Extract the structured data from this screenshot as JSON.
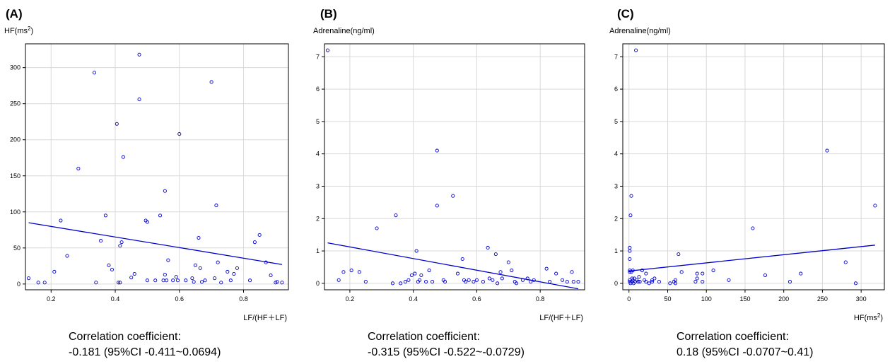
{
  "chart_data": [
    {
      "type": "scatter",
      "panel_label": "(A)",
      "ylabel": "HF(ms",
      "ylabel_sup": "2",
      "ylabel_end": ")",
      "xlabel": "LF/(HF＋LF)",
      "xlabel_sup": "",
      "xlabel_end": "",
      "xlim": [
        0.12,
        0.94
      ],
      "ylim": [
        -8,
        333
      ],
      "xticks": [
        0.2,
        0.4,
        0.6,
        0.8
      ],
      "xtick_labels": [
        "0.2",
        "0.4",
        "0.6",
        "0.8"
      ],
      "yticks": [
        0,
        50,
        100,
        150,
        200,
        250,
        300
      ],
      "ytick_labels": [
        "0",
        "50",
        "100",
        "150",
        "200",
        "250",
        "300"
      ],
      "grid": true,
      "point_color": "#0000cc",
      "line_color": "#0000cc",
      "fit_line": {
        "x": [
          0.13,
          0.92
        ],
        "y": [
          85,
          27
        ]
      },
      "caption_title": "Correlation coefficient:",
      "caption_value": "-0.181 (95%CI -0.411~0.0694)",
      "points": [
        {
          "x": 0.13,
          "y": 8
        },
        {
          "x": 0.16,
          "y": 2
        },
        {
          "x": 0.18,
          "y": 2
        },
        {
          "x": 0.21,
          "y": 17
        },
        {
          "x": 0.23,
          "y": 88
        },
        {
          "x": 0.25,
          "y": 39
        },
        {
          "x": 0.285,
          "y": 160
        },
        {
          "x": 0.335,
          "y": 293
        },
        {
          "x": 0.34,
          "y": 2
        },
        {
          "x": 0.355,
          "y": 60
        },
        {
          "x": 0.37,
          "y": 95
        },
        {
          "x": 0.38,
          "y": 26
        },
        {
          "x": 0.39,
          "y": 20
        },
        {
          "x": 0.405,
          "y": 222
        },
        {
          "x": 0.41,
          "y": 2
        },
        {
          "x": 0.415,
          "y": 2
        },
        {
          "x": 0.415,
          "y": 53
        },
        {
          "x": 0.42,
          "y": 58
        },
        {
          "x": 0.425,
          "y": 176
        },
        {
          "x": 0.45,
          "y": 9
        },
        {
          "x": 0.46,
          "y": 14
        },
        {
          "x": 0.475,
          "y": 256
        },
        {
          "x": 0.475,
          "y": 318
        },
        {
          "x": 0.495,
          "y": 88
        },
        {
          "x": 0.5,
          "y": 86
        },
        {
          "x": 0.5,
          "y": 5
        },
        {
          "x": 0.525,
          "y": 5
        },
        {
          "x": 0.54,
          "y": 95
        },
        {
          "x": 0.55,
          "y": 5
        },
        {
          "x": 0.555,
          "y": 13
        },
        {
          "x": 0.555,
          "y": 129
        },
        {
          "x": 0.56,
          "y": 5
        },
        {
          "x": 0.565,
          "y": 33
        },
        {
          "x": 0.58,
          "y": 5
        },
        {
          "x": 0.59,
          "y": 10
        },
        {
          "x": 0.595,
          "y": 5
        },
        {
          "x": 0.6,
          "y": 208
        },
        {
          "x": 0.62,
          "y": 5
        },
        {
          "x": 0.64,
          "y": 8
        },
        {
          "x": 0.645,
          "y": 3
        },
        {
          "x": 0.65,
          "y": 26
        },
        {
          "x": 0.66,
          "y": 64
        },
        {
          "x": 0.665,
          "y": 22
        },
        {
          "x": 0.67,
          "y": 3
        },
        {
          "x": 0.68,
          "y": 5
        },
        {
          "x": 0.7,
          "y": 280
        },
        {
          "x": 0.71,
          "y": 8
        },
        {
          "x": 0.715,
          "y": 109
        },
        {
          "x": 0.72,
          "y": 30
        },
        {
          "x": 0.73,
          "y": 2
        },
        {
          "x": 0.75,
          "y": 17
        },
        {
          "x": 0.76,
          "y": 5
        },
        {
          "x": 0.77,
          "y": 14
        },
        {
          "x": 0.78,
          "y": 22
        },
        {
          "x": 0.82,
          "y": 5
        },
        {
          "x": 0.835,
          "y": 58
        },
        {
          "x": 0.85,
          "y": 68
        },
        {
          "x": 0.87,
          "y": 30
        },
        {
          "x": 0.885,
          "y": 12
        },
        {
          "x": 0.9,
          "y": 2
        },
        {
          "x": 0.905,
          "y": 3
        },
        {
          "x": 0.92,
          "y": 2
        }
      ]
    },
    {
      "type": "scatter",
      "panel_label": "(B)",
      "ylabel": "Adrenaline(ng/ml)",
      "ylabel_sup": "",
      "ylabel_end": "",
      "xlabel": "LF/(HF＋LF)",
      "xlabel_sup": "",
      "xlabel_end": "",
      "xlim": [
        0.12,
        0.94
      ],
      "ylim": [
        -0.2,
        7.4
      ],
      "xticks": [
        0.2,
        0.4,
        0.6,
        0.8
      ],
      "xtick_labels": [
        "0.2",
        "0.4",
        "0.6",
        "0.8"
      ],
      "yticks": [
        0,
        1,
        2,
        3,
        4,
        5,
        6,
        7
      ],
      "ytick_labels": [
        "0",
        "1",
        "2",
        "3",
        "4",
        "5",
        "6",
        "7"
      ],
      "grid": true,
      "point_color": "#0000cc",
      "line_color": "#0000cc",
      "fit_line": {
        "x": [
          0.13,
          0.92
        ],
        "y": [
          1.25,
          -0.17
        ]
      },
      "caption_title": "Correlation coefficient:",
      "caption_value": "-0.315 (95%CI -0.522~-0.0729)",
      "points": [
        {
          "x": 0.13,
          "y": 7.2
        },
        {
          "x": 0.165,
          "y": 0.1
        },
        {
          "x": 0.18,
          "y": 0.35
        },
        {
          "x": 0.205,
          "y": 0.4
        },
        {
          "x": 0.23,
          "y": 0.35
        },
        {
          "x": 0.25,
          "y": 0.05
        },
        {
          "x": 0.285,
          "y": 1.7
        },
        {
          "x": 0.335,
          "y": 0.0
        },
        {
          "x": 0.345,
          "y": 2.1
        },
        {
          "x": 0.36,
          "y": 0.0
        },
        {
          "x": 0.375,
          "y": 0.05
        },
        {
          "x": 0.385,
          "y": 0.1
        },
        {
          "x": 0.395,
          "y": 0.25
        },
        {
          "x": 0.405,
          "y": 0.3
        },
        {
          "x": 0.41,
          "y": 1.0
        },
        {
          "x": 0.415,
          "y": 0.05
        },
        {
          "x": 0.42,
          "y": 0.1
        },
        {
          "x": 0.425,
          "y": 0.25
        },
        {
          "x": 0.44,
          "y": 0.05
        },
        {
          "x": 0.45,
          "y": 0.4
        },
        {
          "x": 0.46,
          "y": 0.05
        },
        {
          "x": 0.475,
          "y": 2.4
        },
        {
          "x": 0.475,
          "y": 4.1
        },
        {
          "x": 0.495,
          "y": 0.1
        },
        {
          "x": 0.5,
          "y": 0.05
        },
        {
          "x": 0.525,
          "y": 2.7
        },
        {
          "x": 0.54,
          "y": 0.3
        },
        {
          "x": 0.555,
          "y": 0.75
        },
        {
          "x": 0.56,
          "y": 0.1
        },
        {
          "x": 0.565,
          "y": 0.05
        },
        {
          "x": 0.575,
          "y": 0.1
        },
        {
          "x": 0.59,
          "y": 0.05
        },
        {
          "x": 0.6,
          "y": 0.1
        },
        {
          "x": 0.62,
          "y": 0.05
        },
        {
          "x": 0.635,
          "y": 1.1
        },
        {
          "x": 0.64,
          "y": 0.15
        },
        {
          "x": 0.65,
          "y": 0.1
        },
        {
          "x": 0.66,
          "y": 0.9
        },
        {
          "x": 0.665,
          "y": 0.0
        },
        {
          "x": 0.675,
          "y": 0.35
        },
        {
          "x": 0.68,
          "y": 0.15
        },
        {
          "x": 0.7,
          "y": 0.65
        },
        {
          "x": 0.71,
          "y": 0.4
        },
        {
          "x": 0.72,
          "y": 0.05
        },
        {
          "x": 0.725,
          "y": 0.0
        },
        {
          "x": 0.745,
          "y": 0.1
        },
        {
          "x": 0.76,
          "y": 0.15
        },
        {
          "x": 0.77,
          "y": 0.05
        },
        {
          "x": 0.78,
          "y": 0.1
        },
        {
          "x": 0.82,
          "y": 0.45
        },
        {
          "x": 0.83,
          "y": 0.05
        },
        {
          "x": 0.85,
          "y": 0.3
        },
        {
          "x": 0.87,
          "y": 0.1
        },
        {
          "x": 0.885,
          "y": 0.05
        },
        {
          "x": 0.9,
          "y": 0.35
        },
        {
          "x": 0.905,
          "y": 0.05
        },
        {
          "x": 0.92,
          "y": 0.05
        }
      ]
    },
    {
      "type": "scatter",
      "panel_label": "(C)",
      "ylabel": "Adrenaline(ng/ml)",
      "ylabel_sup": "",
      "ylabel_end": "",
      "xlabel": "HF(ms",
      "xlabel_sup": "2",
      "xlabel_end": ")",
      "xlim": [
        -8,
        330
      ],
      "ylim": [
        -0.2,
        7.4
      ],
      "xticks": [
        0,
        50,
        100,
        150,
        200,
        250,
        300
      ],
      "xtick_labels": [
        "0",
        "50",
        "100",
        "150",
        "200",
        "250",
        "300"
      ],
      "yticks": [
        0,
        1,
        2,
        3,
        4,
        5,
        6,
        7
      ],
      "ytick_labels": [
        "0",
        "1",
        "2",
        "3",
        "4",
        "5",
        "6",
        "7"
      ],
      "grid": true,
      "point_color": "#0000cc",
      "line_color": "#0000cc",
      "fit_line": {
        "x": [
          0,
          318
        ],
        "y": [
          0.38,
          1.18
        ]
      },
      "caption_title": "Correlation coefficient:",
      "caption_value": "0.18 (95%CI -0.0707~0.41)",
      "points": [
        {
          "x": 1,
          "y": 1.1
        },
        {
          "x": 1,
          "y": 1.0
        },
        {
          "x": 1,
          "y": 0.75
        },
        {
          "x": 1,
          "y": 0.4
        },
        {
          "x": 1,
          "y": 0.35
        },
        {
          "x": 1,
          "y": 0.1
        },
        {
          "x": 1,
          "y": 0.05
        },
        {
          "x": 2,
          "y": 0.0
        },
        {
          "x": 2,
          "y": 2.1
        },
        {
          "x": 3,
          "y": 2.7
        },
        {
          "x": 3,
          "y": 0.35
        },
        {
          "x": 4,
          "y": 0.15
        },
        {
          "x": 4,
          "y": 0.05
        },
        {
          "x": 5,
          "y": 0.4
        },
        {
          "x": 5,
          "y": 0.1
        },
        {
          "x": 6,
          "y": 0.0
        },
        {
          "x": 7,
          "y": 0.15
        },
        {
          "x": 8,
          "y": 0.05
        },
        {
          "x": 9,
          "y": 7.2
        },
        {
          "x": 10,
          "y": 0.1
        },
        {
          "x": 12,
          "y": 0.05
        },
        {
          "x": 13,
          "y": 0.2
        },
        {
          "x": 14,
          "y": 0.05
        },
        {
          "x": 17,
          "y": 0.4
        },
        {
          "x": 20,
          "y": 0.1
        },
        {
          "x": 22,
          "y": 0.3
        },
        {
          "x": 22,
          "y": 0.05
        },
        {
          "x": 26,
          "y": 0.0
        },
        {
          "x": 30,
          "y": 0.1
        },
        {
          "x": 30,
          "y": 0.05
        },
        {
          "x": 33,
          "y": 0.15
        },
        {
          "x": 39,
          "y": 0.05
        },
        {
          "x": 53,
          "y": 0.0
        },
        {
          "x": 58,
          "y": 0.05
        },
        {
          "x": 60,
          "y": 0.0
        },
        {
          "x": 60,
          "y": 0.1
        },
        {
          "x": 64,
          "y": 0.9
        },
        {
          "x": 68,
          "y": 0.35
        },
        {
          "x": 86,
          "y": 0.05
        },
        {
          "x": 88,
          "y": 0.15
        },
        {
          "x": 88,
          "y": 0.3
        },
        {
          "x": 95,
          "y": 0.05
        },
        {
          "x": 95,
          "y": 0.3
        },
        {
          "x": 109,
          "y": 0.4
        },
        {
          "x": 129,
          "y": 0.1
        },
        {
          "x": 160,
          "y": 1.7
        },
        {
          "x": 176,
          "y": 0.25
        },
        {
          "x": 208,
          "y": 0.05
        },
        {
          "x": 222,
          "y": 0.3
        },
        {
          "x": 256,
          "y": 4.1
        },
        {
          "x": 280,
          "y": 0.65
        },
        {
          "x": 293,
          "y": 0.0
        },
        {
          "x": 318,
          "y": 2.4
        }
      ]
    }
  ]
}
